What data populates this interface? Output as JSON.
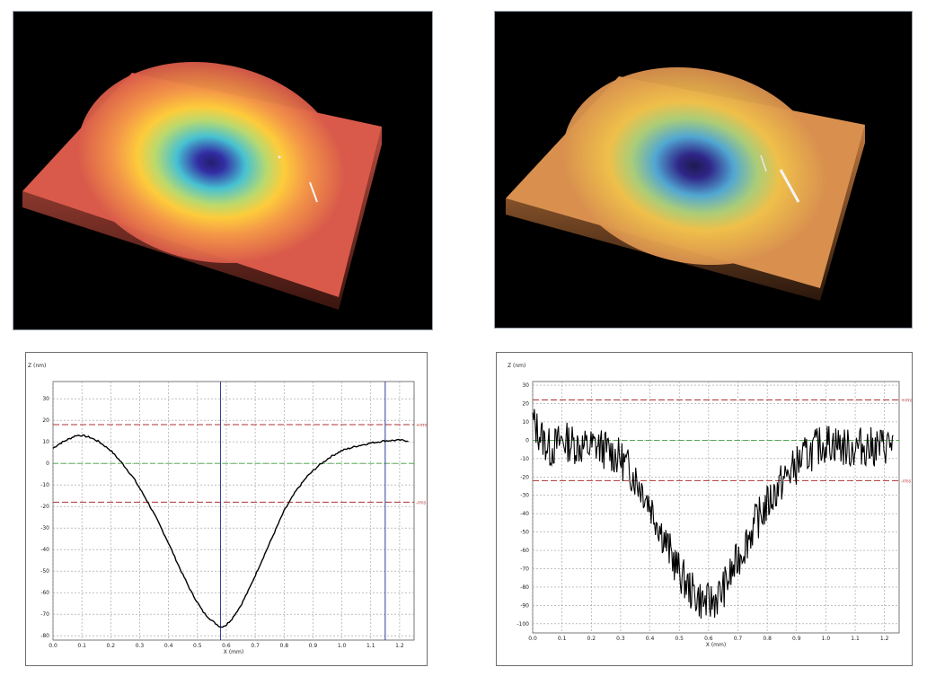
{
  "figures": {
    "left_3d": {
      "colors": {
        "outer": "#d95a4a",
        "ring": "#ffd23a",
        "mid": "#3fc7d9",
        "center": "#2a2aa8"
      }
    },
    "right_3d": {
      "colors": {
        "outer": "#d9904f",
        "ring": "#f0c24a",
        "mid": "#4aa8d9",
        "center": "#26208a"
      }
    }
  },
  "chart_data": [
    {
      "type": "line",
      "xlabel": "X (mm)",
      "ylabel": "Z (nm)",
      "xlim": [
        0.0,
        1.25
      ],
      "ylim": [
        -82,
        38
      ],
      "x_ticks": [
        "0.0",
        "0.1",
        "0.2",
        "0.3",
        "0.4",
        "0.5",
        "0.6",
        "0.7",
        "0.8",
        "0.9",
        "1.0",
        "1.1",
        "1.2"
      ],
      "y_ticks": [
        "30",
        "20",
        "10",
        "0",
        "-10",
        "-20",
        "-30",
        "-40",
        "-50",
        "-60",
        "-70",
        "-80"
      ],
      "grid": true,
      "rms_upper": 18,
      "rms_lower": -18,
      "rms_upper_label": "+rms",
      "rms_lower_label": "-rms",
      "cursor_x": [
        0.58,
        1.15
      ],
      "colors": {
        "line": "#000000",
        "rms": "#b03030",
        "zero": "#3aa03a",
        "cursor": "#2d3f9a",
        "grid": "#9a9a9a"
      },
      "series": [
        {
          "x": [
            0.0,
            0.02,
            0.05,
            0.08,
            0.1,
            0.13,
            0.16,
            0.2,
            0.24,
            0.28,
            0.32,
            0.36,
            0.4,
            0.44,
            0.48,
            0.52,
            0.55,
            0.57,
            0.58,
            0.6,
            0.62,
            0.65,
            0.68,
            0.71,
            0.74,
            0.77,
            0.8,
            0.84,
            0.88,
            0.92,
            0.96,
            1.0,
            1.05,
            1.1,
            1.15,
            1.2,
            1.23
          ],
          "y": [
            7,
            9,
            11,
            13,
            13,
            12,
            10,
            6,
            0,
            -7,
            -16,
            -26,
            -37,
            -49,
            -60,
            -69,
            -73,
            -75,
            -76,
            -75,
            -72,
            -66,
            -58,
            -49,
            -40,
            -31,
            -22,
            -13,
            -6,
            -1,
            3,
            6,
            8,
            9.5,
            10.5,
            10.8,
            10.5
          ]
        }
      ]
    },
    {
      "type": "line",
      "xlabel": "X (mm)",
      "ylabel": "Z (nm)",
      "xlim": [
        0.0,
        1.25
      ],
      "ylim": [
        -105,
        32
      ],
      "x_ticks": [
        "0.0",
        "0.1",
        "0.2",
        "0.3",
        "0.4",
        "0.5",
        "0.6",
        "0.7",
        "0.8",
        "0.9",
        "1.0",
        "1.1",
        "1.2"
      ],
      "y_ticks": [
        "30",
        "20",
        "10",
        "0",
        "-10",
        "-20",
        "-30",
        "-40",
        "-50",
        "-60",
        "-70",
        "-80",
        "-90",
        "-100"
      ],
      "grid": true,
      "rms_upper": 22,
      "rms_lower": -22,
      "rms_upper_label": "+rms",
      "rms_lower_label": "-rms",
      "colors": {
        "line": "#000000",
        "rms": "#b03030",
        "zero": "#3aa03a",
        "grid": "#9a9a9a"
      },
      "series": [
        {
          "x": [
            0.0,
            0.03,
            0.06,
            0.1,
            0.14,
            0.18,
            0.22,
            0.26,
            0.3,
            0.34,
            0.38,
            0.42,
            0.46,
            0.5,
            0.54,
            0.58,
            0.6,
            0.64,
            0.68,
            0.72,
            0.76,
            0.8,
            0.84,
            0.88,
            0.92,
            0.96,
            1.0,
            1.04,
            1.08,
            1.12,
            1.16,
            1.2,
            1.23
          ],
          "y": [
            10,
            2,
            -5,
            0,
            -2,
            -4,
            -3,
            -6,
            -10,
            -18,
            -28,
            -42,
            -58,
            -72,
            -82,
            -88,
            -89,
            -84,
            -72,
            -58,
            -45,
            -35,
            -25,
            -17,
            -10,
            -5,
            -1,
            -2,
            -5,
            -3,
            -4,
            -3,
            -1
          ]
        }
      ]
    }
  ]
}
